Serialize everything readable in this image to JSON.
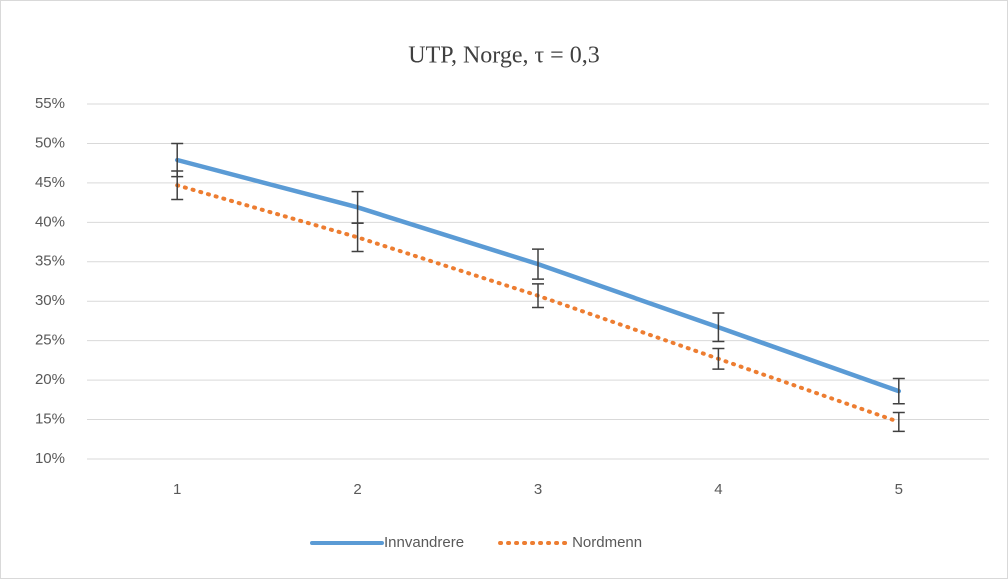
{
  "chart_data": {
    "type": "line",
    "title": "UTP, Norge, τ = 0,3",
    "categories": [
      "1",
      "2",
      "3",
      "4",
      "5"
    ],
    "series": [
      {
        "name": "Innvandrere",
        "color": "#5b9bd5",
        "style": "solid",
        "values": [
          47.9,
          41.9,
          34.7,
          26.7,
          18.6
        ],
        "errors": [
          2.1,
          2.0,
          1.9,
          1.8,
          1.6
        ]
      },
      {
        "name": "Nordmenn",
        "color": "#ed7d31",
        "style": "dotted",
        "values": [
          44.7,
          38.1,
          30.7,
          22.7,
          14.7
        ],
        "errors": [
          1.8,
          1.8,
          1.5,
          1.3,
          1.2
        ]
      }
    ],
    "ylim": [
      10,
      55
    ],
    "yticks": [
      {
        "value": 10,
        "label": "10%"
      },
      {
        "value": 15,
        "label": "15%"
      },
      {
        "value": 20,
        "label": "20%"
      },
      {
        "value": 25,
        "label": "25%"
      },
      {
        "value": 30,
        "label": "30%"
      },
      {
        "value": 35,
        "label": "35%"
      },
      {
        "value": 40,
        "label": "40%"
      },
      {
        "value": 45,
        "label": "45%"
      },
      {
        "value": 50,
        "label": "50%"
      },
      {
        "value": 55,
        "label": "55%"
      }
    ],
    "grid": true,
    "legend": "bottom"
  }
}
